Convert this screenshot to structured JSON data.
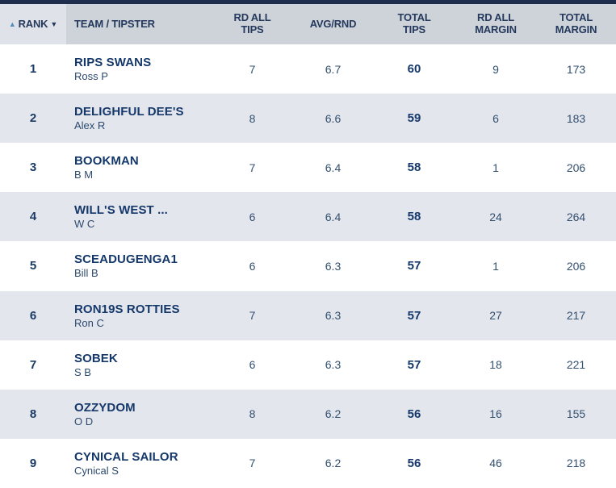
{
  "colors": {
    "top_bar": "#1e2c4e",
    "header_bg": "#ced3da",
    "rank_header_bg": "#dfe2e8",
    "row_alt_bg": "#e4e6ed",
    "row_bg": "#ffffff",
    "text_primary_navy": "#15386b",
    "text_secondary_navy": "#33506f",
    "sort_asc_accent": "#4e8cba"
  },
  "table": {
    "sort": {
      "asc_icon": "▲",
      "desc_icon": "▼"
    },
    "columns": [
      {
        "label": "RANK"
      },
      {
        "label": "TEAM / TIPSTER"
      },
      {
        "label": "RD ALL TIPS"
      },
      {
        "label": "AVG/RND"
      },
      {
        "label": "TOTAL TIPS"
      },
      {
        "label": "RD ALL MARGIN"
      },
      {
        "label": "TOTAL MARGIN"
      }
    ],
    "rows": [
      {
        "rank": "1",
        "team": "RIPS SWANS",
        "tipster": "Ross P",
        "rd_all_tips": "7",
        "avg_rnd": "6.7",
        "total_tips": "60",
        "rd_all_margin": "9",
        "total_margin": "173"
      },
      {
        "rank": "2",
        "team": "DELIGHFUL DEE'S",
        "tipster": "Alex R",
        "rd_all_tips": "8",
        "avg_rnd": "6.6",
        "total_tips": "59",
        "rd_all_margin": "6",
        "total_margin": "183"
      },
      {
        "rank": "3",
        "team": "BOOKMAN",
        "tipster": "B M",
        "rd_all_tips": "7",
        "avg_rnd": "6.4",
        "total_tips": "58",
        "rd_all_margin": "1",
        "total_margin": "206"
      },
      {
        "rank": "4",
        "team": "WILL'S WEST ...",
        "tipster": "W C",
        "rd_all_tips": "6",
        "avg_rnd": "6.4",
        "total_tips": "58",
        "rd_all_margin": "24",
        "total_margin": "264"
      },
      {
        "rank": "5",
        "team": "SCEADUGENGA1",
        "tipster": "Bill B",
        "rd_all_tips": "6",
        "avg_rnd": "6.3",
        "total_tips": "57",
        "rd_all_margin": "1",
        "total_margin": "206"
      },
      {
        "rank": "6",
        "team": "RON19S ROTTIES",
        "tipster": "Ron C",
        "rd_all_tips": "7",
        "avg_rnd": "6.3",
        "total_tips": "57",
        "rd_all_margin": "27",
        "total_margin": "217"
      },
      {
        "rank": "7",
        "team": "SOBEK",
        "tipster": "S B",
        "rd_all_tips": "6",
        "avg_rnd": "6.3",
        "total_tips": "57",
        "rd_all_margin": "18",
        "total_margin": "221"
      },
      {
        "rank": "8",
        "team": "OZZYDOM",
        "tipster": "O D",
        "rd_all_tips": "8",
        "avg_rnd": "6.2",
        "total_tips": "56",
        "rd_all_margin": "16",
        "total_margin": "155"
      },
      {
        "rank": "9",
        "team": "CYNICAL SAILOR",
        "tipster": "Cynical S",
        "rd_all_tips": "7",
        "avg_rnd": "6.2",
        "total_tips": "56",
        "rd_all_margin": "46",
        "total_margin": "218"
      }
    ]
  }
}
